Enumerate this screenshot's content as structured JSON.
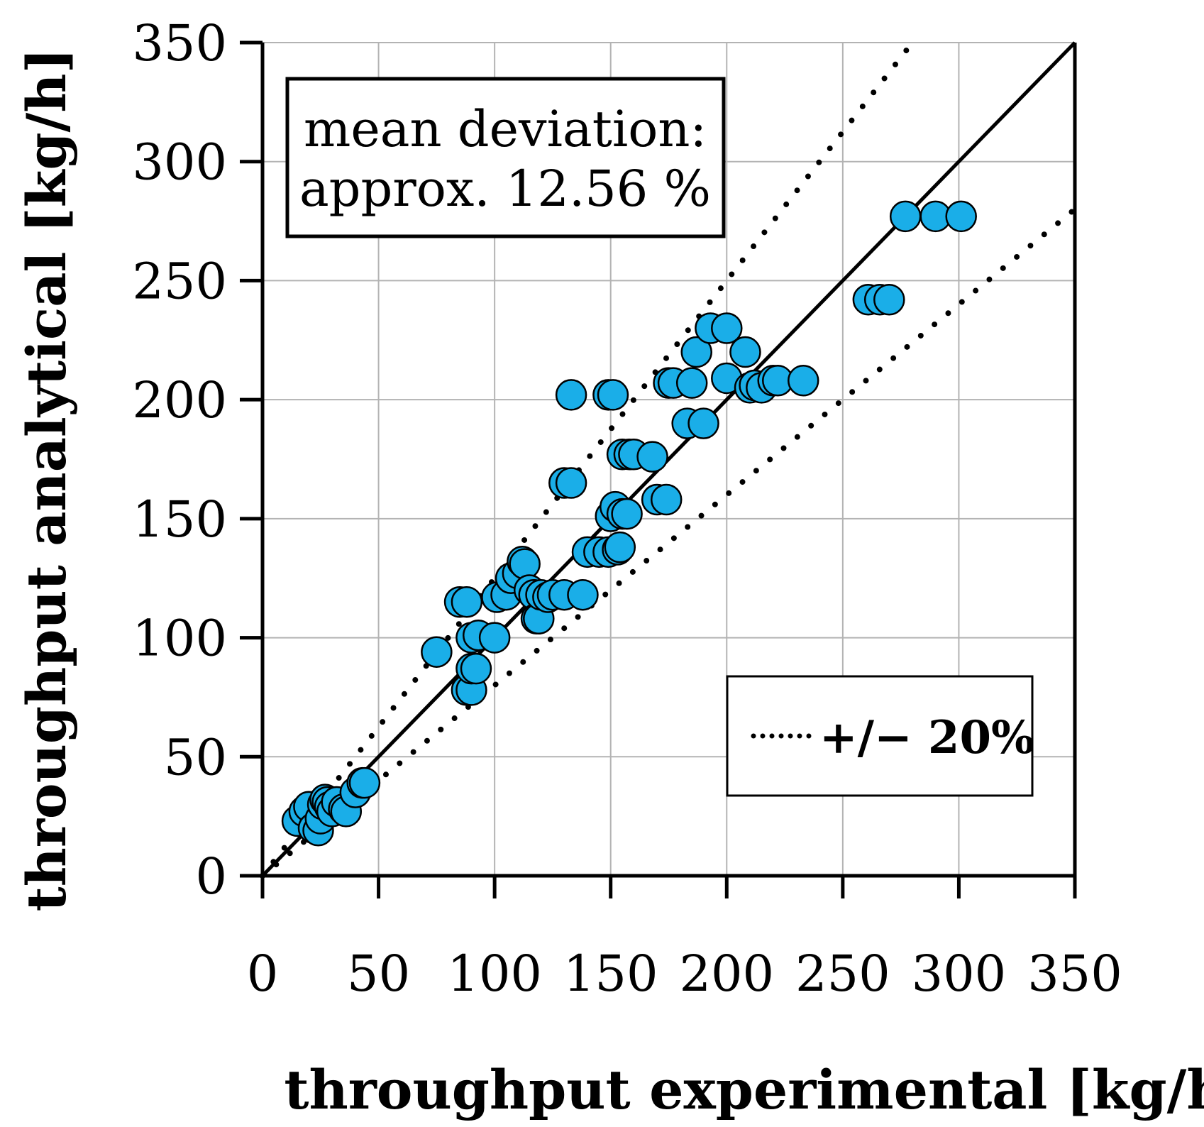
{
  "chart_data": {
    "type": "scatter",
    "title": "",
    "xlabel": "throughput experimental [kg/h]",
    "ylabel": "throughput analytical [kg/h]",
    "xlim": [
      0,
      350
    ],
    "ylim": [
      0,
      350
    ],
    "xticks": [
      0,
      50,
      100,
      150,
      200,
      250,
      300,
      350
    ],
    "yticks": [
      0,
      50,
      100,
      150,
      200,
      250,
      300,
      350
    ],
    "grid": true,
    "annotation": {
      "line1": "mean deviation:",
      "line2": "approx. 12.56 %"
    },
    "legend": {
      "label": "+/− 20%",
      "position": "bottom-right"
    },
    "reference_lines": [
      {
        "name": "ideal",
        "slope": 1.0,
        "style": "solid"
      },
      {
        "name": "plus 20%",
        "slope": 1.25,
        "style": "dotted"
      },
      {
        "name": "minus 20%",
        "slope": 0.8,
        "style": "dotted"
      }
    ],
    "marker_color": "#1aaee8",
    "series": [
      {
        "name": "measurements",
        "points": [
          [
            15,
            23
          ],
          [
            18,
            27
          ],
          [
            20,
            29
          ],
          [
            22,
            20
          ],
          [
            24,
            19
          ],
          [
            25,
            24
          ],
          [
            26,
            30
          ],
          [
            27,
            32
          ],
          [
            28,
            31
          ],
          [
            29,
            29
          ],
          [
            30,
            27
          ],
          [
            32,
            31
          ],
          [
            35,
            28
          ],
          [
            36,
            27
          ],
          [
            40,
            35
          ],
          [
            43,
            39
          ],
          [
            44,
            39
          ],
          [
            75,
            94
          ],
          [
            85,
            115
          ],
          [
            88,
            78
          ],
          [
            88,
            115
          ],
          [
            90,
            78
          ],
          [
            90,
            87
          ],
          [
            90,
            100
          ],
          [
            92,
            87
          ],
          [
            93,
            101
          ],
          [
            100,
            100
          ],
          [
            101,
            117
          ],
          [
            105,
            118
          ],
          [
            107,
            125
          ],
          [
            110,
            127
          ],
          [
            112,
            132
          ],
          [
            113,
            131
          ],
          [
            115,
            120
          ],
          [
            117,
            118
          ],
          [
            118,
            108
          ],
          [
            119,
            108
          ],
          [
            120,
            118
          ],
          [
            123,
            117
          ],
          [
            125,
            118
          ],
          [
            130,
            118
          ],
          [
            138,
            118
          ],
          [
            130,
            165
          ],
          [
            133,
            165
          ],
          [
            133,
            202
          ],
          [
            149,
            202
          ],
          [
            151,
            202
          ],
          [
            140,
            136
          ],
          [
            145,
            136
          ],
          [
            149,
            136
          ],
          [
            150,
            151
          ],
          [
            152,
            155
          ],
          [
            153,
            137
          ],
          [
            154,
            138
          ],
          [
            155,
            152
          ],
          [
            157,
            152
          ],
          [
            155,
            177
          ],
          [
            158,
            177
          ],
          [
            160,
            177
          ],
          [
            168,
            176
          ],
          [
            170,
            158
          ],
          [
            174,
            158
          ],
          [
            175,
            207
          ],
          [
            177,
            207
          ],
          [
            183,
            190
          ],
          [
            185,
            207
          ],
          [
            187,
            220
          ],
          [
            190,
            190
          ],
          [
            193,
            230
          ],
          [
            200,
            230
          ],
          [
            200,
            209
          ],
          [
            208,
            220
          ],
          [
            210,
            205
          ],
          [
            212,
            206
          ],
          [
            215,
            205
          ],
          [
            220,
            208
          ],
          [
            222,
            208
          ],
          [
            233,
            208
          ],
          [
            261,
            242
          ],
          [
            266,
            242
          ],
          [
            270,
            242
          ],
          [
            277,
            277
          ],
          [
            290,
            277
          ],
          [
            301,
            277
          ]
        ]
      }
    ]
  }
}
